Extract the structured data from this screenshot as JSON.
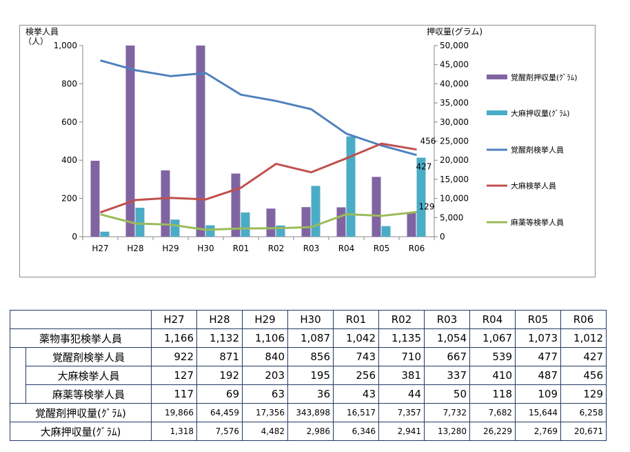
{
  "chart_data": {
    "type": "bar",
    "categories": [
      "H27",
      "H28",
      "H29",
      "H30",
      "R01",
      "R02",
      "R03",
      "R04",
      "R05",
      "R06"
    ],
    "y_left": {
      "label": [
        "検挙人員",
        "（人）"
      ],
      "ylim": [
        0,
        1000
      ],
      "ticks": [
        "0",
        "200",
        "400",
        "600",
        "800",
        "1,000"
      ],
      "tick_values": [
        0,
        200,
        400,
        600,
        800,
        1000
      ]
    },
    "y_right": {
      "label": "押収量(グラム)",
      "ylim": [
        0,
        50000
      ],
      "ticks": [
        "0",
        "5,000",
        "10,000",
        "15,000",
        "20,000",
        "25,000",
        "30,000",
        "35,000",
        "40,000",
        "45,000",
        "50,000"
      ],
      "tick_values": [
        0,
        5000,
        10000,
        15000,
        20000,
        25000,
        30000,
        35000,
        40000,
        45000,
        50000
      ]
    },
    "bar_series": [
      {
        "name": "覚醒剤押収量(ｸﾞﾗﾑ)",
        "axis": "right",
        "color": "#8064a2",
        "values": [
          19866,
          64459,
          17356,
          343898,
          16517,
          7357,
          7732,
          7682,
          15644,
          6258
        ]
      },
      {
        "name": "大麻押収量(ｸﾞﾗﾑ)",
        "axis": "right",
        "color": "#4bacc6",
        "values": [
          1318,
          7576,
          4482,
          2986,
          6346,
          2941,
          13280,
          26229,
          2769,
          20671
        ]
      }
    ],
    "line_series": [
      {
        "name": "覚醒剤検挙人員",
        "axis": "left",
        "color": "#4f81bd",
        "values": [
          922,
          871,
          840,
          856,
          743,
          710,
          667,
          539,
          477,
          427
        ]
      },
      {
        "name": "大麻検挙人員",
        "axis": "left",
        "color": "#c0504d",
        "values": [
          127,
          192,
          203,
          195,
          256,
          381,
          337,
          410,
          487,
          456
        ]
      },
      {
        "name": "麻薬等検挙人員",
        "axis": "left",
        "color": "#9bbb59",
        "values": [
          117,
          69,
          63,
          36,
          43,
          44,
          50,
          118,
          109,
          129
        ]
      }
    ],
    "data_labels": [
      "456",
      "427",
      "129"
    ],
    "legend_position": "right",
    "grid": false
  },
  "table": {
    "headers": [
      "H27",
      "H28",
      "H29",
      "H30",
      "R01",
      "R02",
      "R03",
      "R04",
      "R05",
      "R06"
    ],
    "rows": [
      {
        "label": "薬物事犯検挙人員",
        "indent": false,
        "small": false,
        "values": [
          "1,166",
          "1,132",
          "1,106",
          "1,087",
          "1,042",
          "1,135",
          "1,054",
          "1,067",
          "1,073",
          "1,012"
        ]
      },
      {
        "label": "覚醒剤検挙人員",
        "indent": true,
        "small": false,
        "values": [
          "922",
          "871",
          "840",
          "856",
          "743",
          "710",
          "667",
          "539",
          "477",
          "427"
        ]
      },
      {
        "label": "大麻検挙人員",
        "indent": true,
        "small": false,
        "values": [
          "127",
          "192",
          "203",
          "195",
          "256",
          "381",
          "337",
          "410",
          "487",
          "456"
        ]
      },
      {
        "label": "麻薬等検挙人員",
        "indent": true,
        "small": false,
        "values": [
          "117",
          "69",
          "63",
          "36",
          "43",
          "44",
          "50",
          "118",
          "109",
          "129"
        ]
      },
      {
        "label": "覚醒剤押収量(ｸﾞﾗﾑ)",
        "indent": false,
        "small": true,
        "values": [
          "19,866",
          "64,459",
          "17,356",
          "343,898",
          "16,517",
          "7,357",
          "7,732",
          "7,682",
          "15,644",
          "6,258"
        ]
      },
      {
        "label": "大麻押収量(ｸﾞﾗﾑ)",
        "indent": false,
        "small": true,
        "values": [
          "1,318",
          "7,576",
          "4,482",
          "2,986",
          "6,346",
          "2,941",
          "13,280",
          "26,229",
          "2,769",
          "20,671"
        ]
      }
    ]
  }
}
